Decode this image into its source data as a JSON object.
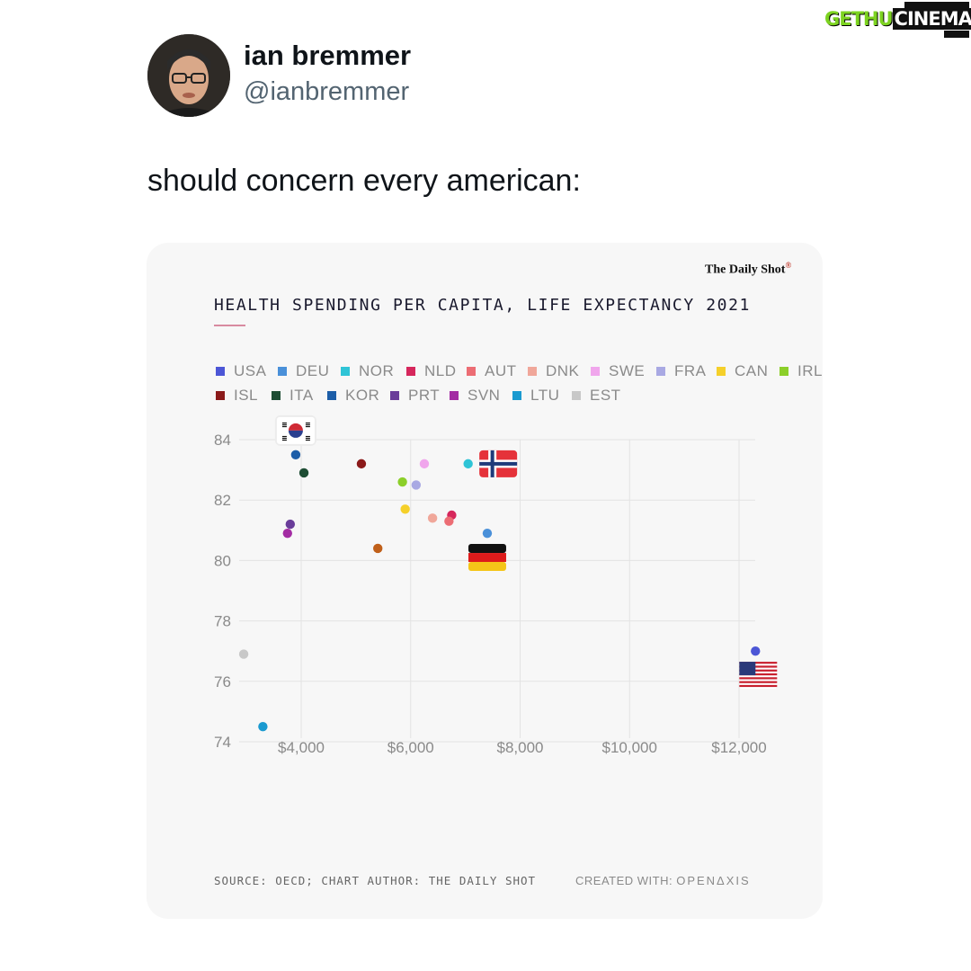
{
  "watermark": {
    "part_a": "GETHU",
    "part_b": "CINEMA"
  },
  "tweet": {
    "author_name": "ian bremmer",
    "author_handle": "@ianbremmer",
    "text": "should concern every american:"
  },
  "card": {
    "brand": "The Daily Shot",
    "source": "SOURCE: OECD; CHART AUTHOR: THE DAILY SHOT",
    "created_label": "CREATED WITH:",
    "created_brand": "OPENΔXIS"
  },
  "colors": {
    "USA": "#4c56d6",
    "DEU": "#4a90d9",
    "NOR": "#2fc4d6",
    "NLD": "#d6275c",
    "AUT": "#ec6d74",
    "DNK": "#f0a79a",
    "SWE": "#f0a6ec",
    "FRA": "#a9a9e3",
    "CAN": "#f5d02a",
    "IRL": "#8ccf2a",
    "ISL": "#8b1a1a",
    "ITA": "#1e4d34",
    "KOR": "#1d5ea8",
    "PRT": "#6a3d9a",
    "SVN": "#a32ca3",
    "LTU": "#1a9ad0",
    "EST": "#c8c8c8",
    "SVN_point": "#a32ca3",
    "AUT_orange": "#c0601a"
  },
  "chart_data": {
    "type": "scatter",
    "title": "HEALTH SPENDING PER CAPITA, LIFE EXPECTANCY 2021",
    "xlabel": "",
    "ylabel": "",
    "xlim": [
      2900,
      12700
    ],
    "ylim": [
      74,
      84
    ],
    "x_ticks": [
      4000,
      6000,
      8000,
      10000,
      12000
    ],
    "x_tick_labels": [
      "$4,000",
      "$6,000",
      "$8,000",
      "$10,000",
      "$12,000"
    ],
    "y_ticks": [
      74,
      76,
      78,
      80,
      82,
      84
    ],
    "y_tick_labels": [
      "74",
      "76",
      "78",
      "80",
      "82",
      "84"
    ],
    "grid": true,
    "legend_position": "top",
    "legend": [
      "USA",
      "DEU",
      "NOR",
      "NLD",
      "AUT",
      "DNK",
      "SWE",
      "FRA",
      "CAN",
      "IRL",
      "ISL",
      "ITA",
      "KOR",
      "PRT",
      "SVN",
      "LTU",
      "EST"
    ],
    "points": [
      {
        "x": 12300,
        "y": 77.0,
        "color": "#4c56d6"
      },
      {
        "x": 7400,
        "y": 80.9,
        "color": "#4a90d9"
      },
      {
        "x": 7050,
        "y": 83.2,
        "color": "#2fc4d6"
      },
      {
        "x": 6750,
        "y": 81.5,
        "color": "#d6275c"
      },
      {
        "x": 6700,
        "y": 81.3,
        "color": "#ec6d74"
      },
      {
        "x": 6400,
        "y": 81.4,
        "color": "#f0a79a"
      },
      {
        "x": 6250,
        "y": 83.2,
        "color": "#f0a6ec"
      },
      {
        "x": 6100,
        "y": 82.5,
        "color": "#a9a9e3"
      },
      {
        "x": 5900,
        "y": 81.7,
        "color": "#f5d02a"
      },
      {
        "x": 5850,
        "y": 82.6,
        "color": "#8ccf2a"
      },
      {
        "x": 5100,
        "y": 83.2,
        "color": "#8b1a1a"
      },
      {
        "x": 5400,
        "y": 80.4,
        "color": "#c0601a"
      },
      {
        "x": 4050,
        "y": 82.9,
        "color": "#1e4d34"
      },
      {
        "x": 3900,
        "y": 83.5,
        "color": "#1d5ea8"
      },
      {
        "x": 3800,
        "y": 81.2,
        "color": "#6a3d9a"
      },
      {
        "x": 3750,
        "y": 80.9,
        "color": "#a32ca3"
      },
      {
        "x": 3300,
        "y": 74.5,
        "color": "#1a9ad0"
      },
      {
        "x": 2950,
        "y": 76.9,
        "color": "#c8c8c8"
      }
    ],
    "flags": [
      {
        "country": "KOR",
        "x": 3900,
        "y": 84.3
      },
      {
        "country": "NOR",
        "x": 7600,
        "y": 83.2
      },
      {
        "country": "DEU",
        "x": 7400,
        "y": 80.1
      },
      {
        "country": "USA",
        "x": 12350,
        "y": 76.2
      }
    ]
  }
}
